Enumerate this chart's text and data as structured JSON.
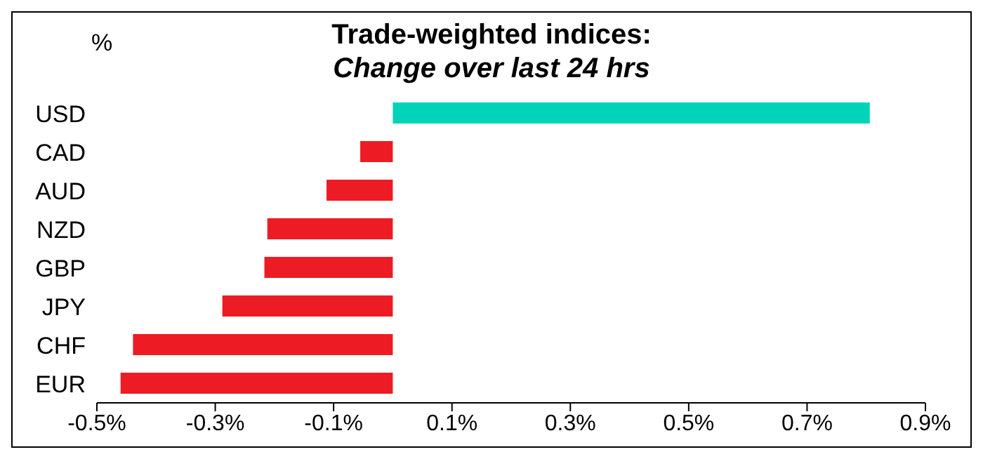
{
  "chart_data": {
    "type": "bar",
    "orientation": "horizontal",
    "title": "Trade-weighted indices:",
    "subtitle": "Change over last 24 hrs",
    "ylabel": "%",
    "categories": [
      "USD",
      "CAD",
      "AUD",
      "NZD",
      "GBP",
      "JPY",
      "CHF",
      "EUR"
    ],
    "values": [
      0.806,
      -0.055,
      -0.112,
      -0.212,
      -0.217,
      -0.288,
      -0.439,
      -0.46
    ],
    "colors": [
      "#00d4b8",
      "#ed1c24",
      "#ed1c24",
      "#ed1c24",
      "#ed1c24",
      "#ed1c24",
      "#ed1c24",
      "#ed1c24"
    ],
    "xlim": [
      -0.5,
      0.9
    ],
    "xticks": [
      {
        "value": -0.5,
        "label": "-0.5%"
      },
      {
        "value": -0.3,
        "label": "-0.3%"
      },
      {
        "value": -0.1,
        "label": "-0.1%"
      },
      {
        "value": 0.1,
        "label": "0.1%"
      },
      {
        "value": 0.3,
        "label": "0.3%"
      },
      {
        "value": 0.5,
        "label": "0.5%"
      },
      {
        "value": 0.7,
        "label": "0.7%"
      },
      {
        "value": 0.9,
        "label": "0.9%"
      }
    ],
    "grid": false,
    "legend": false
  }
}
